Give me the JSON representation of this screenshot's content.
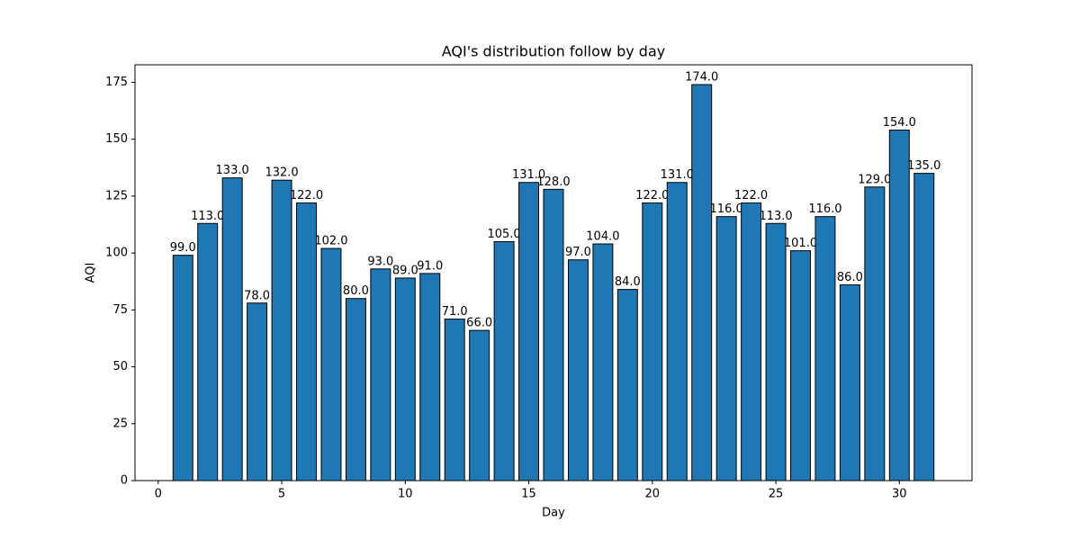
{
  "chart_data": {
    "type": "bar",
    "title": "AQI's distribution follow by day",
    "x_label": "Day",
    "y_label": "AQI",
    "x": [
      1,
      2,
      3,
      4,
      5,
      6,
      7,
      8,
      9,
      10,
      11,
      12,
      13,
      14,
      15,
      16,
      17,
      18,
      19,
      20,
      21,
      22,
      23,
      24,
      25,
      26,
      27,
      28,
      29,
      30,
      31
    ],
    "values": [
      99,
      113,
      133,
      78,
      132,
      122,
      102,
      80,
      93,
      89,
      91,
      71,
      66,
      105,
      131,
      128,
      97,
      104,
      84,
      122,
      131,
      174,
      116,
      122,
      113,
      101,
      116,
      86,
      129,
      154,
      135
    ],
    "value_labels": [
      "99.0",
      "113.0",
      "133.0",
      "78.0",
      "132.0",
      "122.0",
      "102.0",
      "80.0",
      "93.0",
      "89.0",
      "91.0",
      "71.0",
      "66.0",
      "105.0",
      "131.0",
      "128.0",
      "97.0",
      "104.0",
      "84.0",
      "122.0",
      "131.0",
      "174.0",
      "116.0",
      "122.0",
      "113.0",
      "101.0",
      "116.0",
      "86.0",
      "129.0",
      "154.0",
      "135.0"
    ],
    "color": "#1f77b4",
    "edgecolor": "#000000",
    "xlim": [
      -0.94,
      32.94
    ],
    "xticks": [
      0,
      5,
      10,
      15,
      20,
      25,
      30
    ],
    "ylim": [
      0,
      182.7
    ],
    "yticks": [
      0,
      25,
      50,
      75,
      100,
      125,
      150,
      175
    ],
    "grid": false
  }
}
